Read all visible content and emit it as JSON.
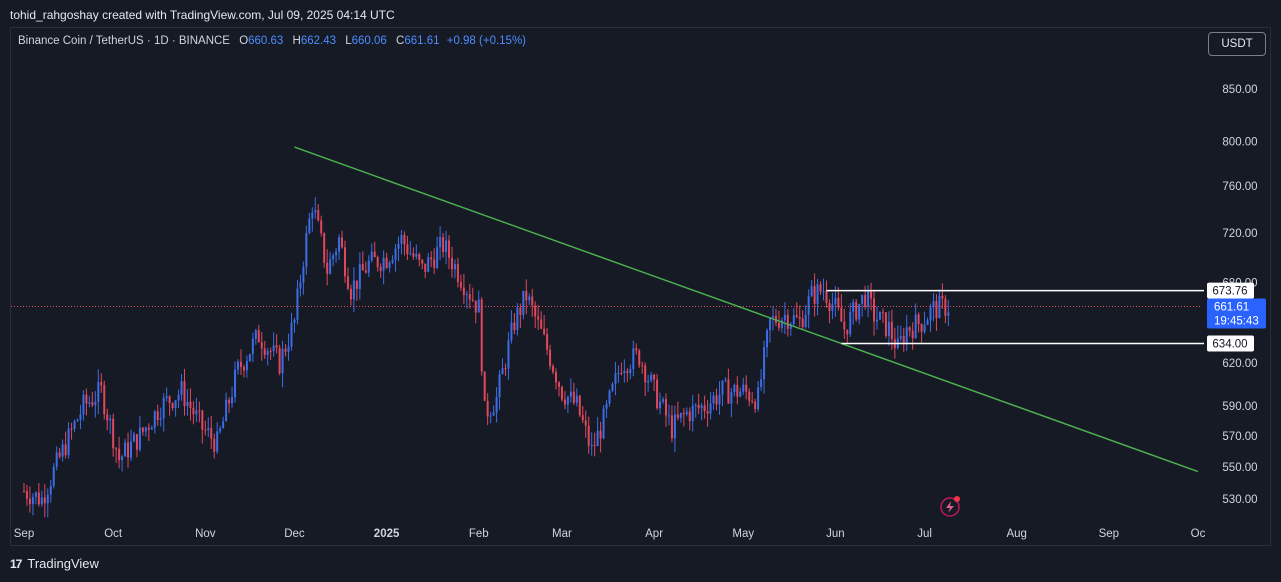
{
  "caption": "tohid_rahgoshay created with TradingView.com, Jul 09, 2025 04:14 UTC",
  "symbol": {
    "title": "Binance Coin / TetherUS · 1D · BINANCE",
    "o_label": "O",
    "o_value": "660.63",
    "h_label": "H",
    "h_value": "662.43",
    "l_label": "L",
    "l_value": "660.06",
    "c_label": "C",
    "c_value": "661.61",
    "change": "+0.98 (+0.15%)"
  },
  "currency_button": "USDT",
  "brand": "TradingView",
  "colors": {
    "background": "#161a25",
    "up": "#3c6ce6",
    "down": "#e0485c",
    "trendline": "#4caf50",
    "level_line": "#ffffff",
    "price_badge": "#2962ff"
  },
  "chart_data": {
    "type": "candlestick",
    "x_axis": {
      "labels": [
        "Sep",
        "Oct",
        "Nov",
        "Dec",
        "2025",
        "Feb",
        "Mar",
        "Apr",
        "May",
        "Jun",
        "Jul",
        "Aug",
        "Sep",
        "Oc"
      ],
      "dates": [
        "2024-09-01",
        "2024-10-01",
        "2024-11-01",
        "2024-12-01",
        "2025-01-01",
        "2025-02-01",
        "2025-03-01",
        "2025-04-01",
        "2025-05-01",
        "2025-06-01",
        "2025-07-01",
        "2025-08-01",
        "2025-09-01",
        "2025-10-01"
      ]
    },
    "y_axis": {
      "scale": "log",
      "tick_values": [
        530,
        550,
        570,
        590,
        620,
        680,
        720,
        760,
        800,
        850
      ],
      "tick_labels": [
        "530.00",
        "550.00",
        "570.00",
        "590.00",
        "620.00",
        "680.00",
        "720.00",
        "760.00",
        "800.00",
        "850.00"
      ]
    },
    "price_path": [
      [
        "2024-09-01",
        535
      ],
      [
        "2024-09-07",
        530
      ],
      [
        "2024-09-14",
        560
      ],
      [
        "2024-09-21",
        590
      ],
      [
        "2024-09-27",
        600
      ],
      [
        "2024-10-03",
        555
      ],
      [
        "2024-10-10",
        570
      ],
      [
        "2024-10-17",
        590
      ],
      [
        "2024-10-24",
        600
      ],
      [
        "2024-10-31",
        575
      ],
      [
        "2024-11-05",
        565
      ],
      [
        "2024-11-12",
        615
      ],
      [
        "2024-11-19",
        640
      ],
      [
        "2024-11-26",
        620
      ],
      [
        "2024-12-01",
        650
      ],
      [
        "2024-12-04",
        700
      ],
      [
        "2024-12-07",
        745
      ],
      [
        "2024-12-12",
        690
      ],
      [
        "2024-12-16",
        715
      ],
      [
        "2024-12-20",
        675
      ],
      [
        "2024-12-26",
        695
      ],
      [
        "2025-01-01",
        700
      ],
      [
        "2025-01-06",
        715
      ],
      [
        "2025-01-13",
        690
      ],
      [
        "2025-01-20",
        710
      ],
      [
        "2025-01-27",
        680
      ],
      [
        "2025-02-01",
        660
      ],
      [
        "2025-02-03",
        585
      ],
      [
        "2025-02-07",
        595
      ],
      [
        "2025-02-13",
        650
      ],
      [
        "2025-02-17",
        670
      ],
      [
        "2025-02-24",
        630
      ],
      [
        "2025-03-01",
        600
      ],
      [
        "2025-03-06",
        590
      ],
      [
        "2025-03-11",
        560
      ],
      [
        "2025-03-15",
        580
      ],
      [
        "2025-03-21",
        620
      ],
      [
        "2025-03-27",
        625
      ],
      [
        "2025-04-01",
        600
      ],
      [
        "2025-04-07",
        575
      ],
      [
        "2025-04-12",
        585
      ],
      [
        "2025-04-18",
        590
      ],
      [
        "2025-04-24",
        600
      ],
      [
        "2025-05-01",
        600
      ],
      [
        "2025-05-06",
        595
      ],
      [
        "2025-05-10",
        650
      ],
      [
        "2025-05-15",
        655
      ],
      [
        "2025-05-20",
        650
      ],
      [
        "2025-05-24",
        670
      ],
      [
        "2025-05-28",
        675
      ],
      [
        "2025-06-01",
        660
      ],
      [
        "2025-06-04",
        645
      ],
      [
        "2025-06-08",
        660
      ],
      [
        "2025-06-11",
        670
      ],
      [
        "2025-06-14",
        655
      ],
      [
        "2025-06-19",
        645
      ],
      [
        "2025-06-22",
        630
      ],
      [
        "2025-06-25",
        645
      ],
      [
        "2025-06-30",
        650
      ],
      [
        "2025-07-04",
        660
      ],
      [
        "2025-07-09",
        661.61
      ]
    ],
    "trendline": {
      "start": [
        "2024-12-01",
        795
      ],
      "end": [
        "2025-10-01",
        547
      ]
    },
    "levels": [
      {
        "label": "673.76",
        "value": 673.76,
        "from": "2025-05-29"
      },
      {
        "label": "634.00",
        "value": 634.0,
        "from": "2025-06-03"
      }
    ],
    "last_price": {
      "label": "661.61",
      "value": 661.61,
      "countdown": "19:45:43"
    }
  }
}
